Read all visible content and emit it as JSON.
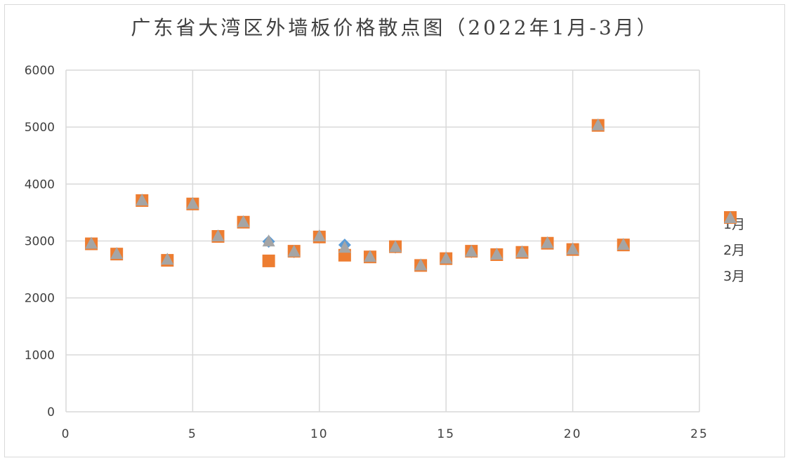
{
  "title": "广东省大湾区外墙板价格散点图（2022年1月-3月）",
  "chart_data": {
    "type": "scatter",
    "title": "广东省大湾区外墙板价格散点图（2022年1月-3月）",
    "xlim": [
      0,
      25
    ],
    "ylim": [
      0,
      6000
    ],
    "x_ticks": [
      0,
      5,
      10,
      15,
      20,
      25
    ],
    "y_ticks": [
      0,
      1000,
      2000,
      3000,
      4000,
      5000,
      6000
    ],
    "grid": true,
    "legend_position": "right",
    "series": [
      {
        "name": "1月",
        "color": "#5b9bd5",
        "marker": "diamond",
        "x": [
          1,
          2,
          3,
          4,
          5,
          6,
          7,
          8,
          9,
          10,
          11,
          12,
          13,
          14,
          15,
          16,
          17,
          18,
          19,
          20,
          21,
          22
        ],
        "y": [
          2950,
          2770,
          3710,
          2670,
          3650,
          3080,
          3330,
          2990,
          2810,
          3080,
          2930,
          2720,
          2890,
          2570,
          2690,
          2810,
          2760,
          2800,
          2960,
          2850,
          5030,
          2930
        ]
      },
      {
        "name": "2月",
        "color": "#ed7d31",
        "marker": "square",
        "x": [
          1,
          2,
          3,
          4,
          5,
          6,
          7,
          8,
          9,
          10,
          11,
          12,
          13,
          14,
          15,
          16,
          17,
          18,
          19,
          20,
          21,
          22
        ],
        "y": [
          2950,
          2770,
          3710,
          2660,
          3650,
          3080,
          3330,
          2650,
          2820,
          3070,
          2750,
          2720,
          2900,
          2570,
          2690,
          2820,
          2760,
          2800,
          2960,
          2850,
          5030,
          2930
        ]
      },
      {
        "name": "3月",
        "color": "#a5a5a5",
        "marker": "triangle",
        "x": [
          1,
          2,
          3,
          4,
          5,
          6,
          7,
          8,
          9,
          10,
          11,
          12,
          13,
          14,
          15,
          16,
          17,
          18,
          19,
          20,
          21,
          22
        ],
        "y": [
          2950,
          2770,
          3710,
          2670,
          3650,
          3080,
          3330,
          2990,
          2810,
          3080,
          2880,
          2720,
          2890,
          2570,
          2690,
          2810,
          2760,
          2800,
          2960,
          2850,
          5030,
          2930
        ]
      }
    ]
  }
}
